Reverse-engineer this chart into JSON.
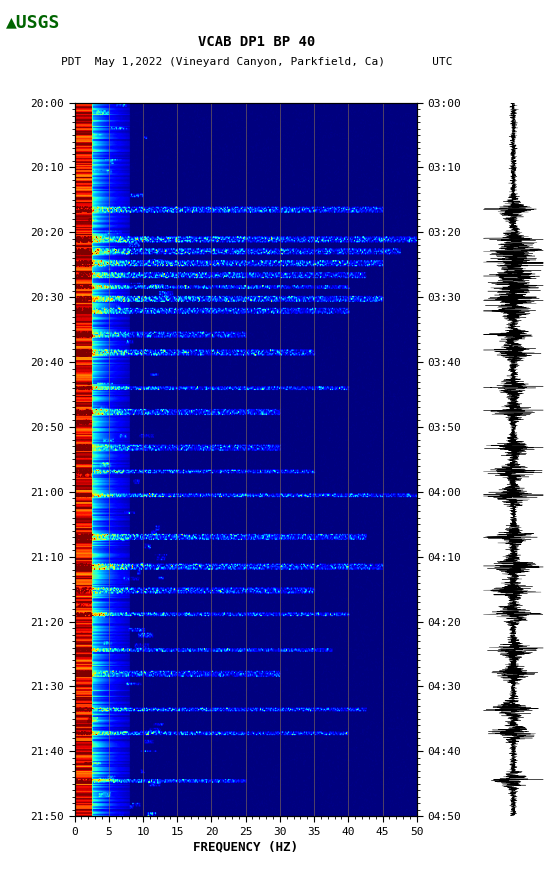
{
  "title_line1": "VCAB DP1 BP 40",
  "title_line2": "PDT  May 1,2022 (Vineyard Canyon, Parkfield, Ca)       UTC",
  "xlabel": "FREQUENCY (HZ)",
  "left_time_labels": [
    "20:00",
    "20:10",
    "20:20",
    "20:30",
    "20:40",
    "20:50",
    "21:00",
    "21:10",
    "21:20",
    "21:30",
    "21:40",
    "21:50"
  ],
  "right_time_labels": [
    "03:00",
    "03:10",
    "03:20",
    "03:30",
    "03:40",
    "03:50",
    "04:00",
    "04:10",
    "04:20",
    "04:30",
    "04:40",
    "04:50"
  ],
  "freq_ticks": [
    0,
    5,
    10,
    15,
    20,
    25,
    30,
    35,
    40,
    45,
    50
  ],
  "freq_min": 0,
  "freq_max": 50,
  "n_time": 600,
  "n_freq": 500,
  "background_color": "#ffffff",
  "fig_width": 5.52,
  "fig_height": 8.92,
  "dpi": 100,
  "usgs_logo_color": "#006400",
  "tick_fontsize": 8,
  "colormap": "jet",
  "vertical_lines_freq": [
    5,
    10,
    15,
    20,
    25,
    30,
    35,
    40,
    45
  ],
  "vertical_line_color": "#8B7355",
  "event_rows": [
    90,
    115,
    125,
    135,
    145,
    155,
    165,
    175,
    195,
    210,
    240,
    260,
    290,
    310,
    330,
    365,
    390,
    410,
    430,
    460,
    480,
    510,
    530,
    570
  ],
  "event_strengths": [
    0.9,
    1.0,
    0.95,
    1.0,
    0.85,
    0.9,
    1.0,
    0.8,
    0.7,
    0.85,
    0.9,
    0.8,
    0.75,
    0.85,
    1.0,
    0.9,
    0.95,
    0.8,
    0.9,
    0.85,
    0.7,
    0.9,
    0.85,
    0.75
  ],
  "event_freq_extents": [
    0.9,
    1.0,
    0.95,
    0.9,
    0.85,
    0.8,
    0.9,
    0.8,
    0.5,
    0.7,
    0.8,
    0.6,
    0.6,
    0.7,
    1.0,
    0.85,
    0.9,
    0.7,
    0.8,
    0.75,
    0.6,
    0.85,
    0.8,
    0.5
  ]
}
